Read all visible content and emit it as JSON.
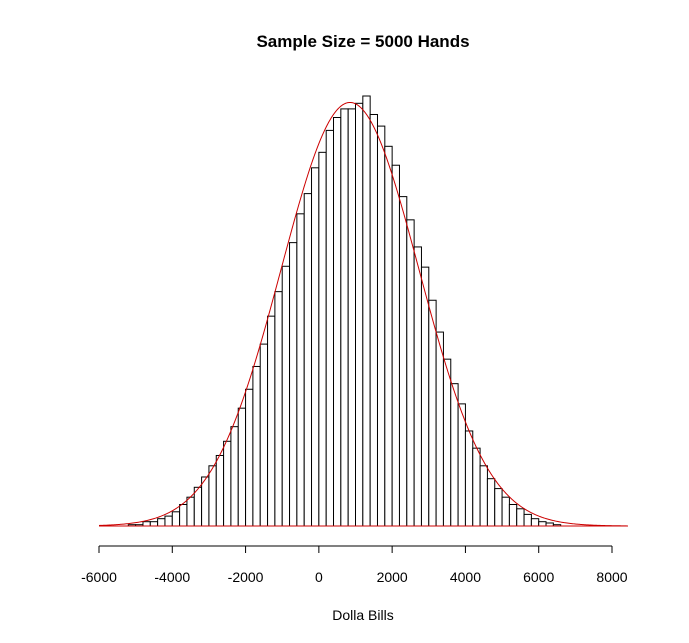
{
  "chart_data": {
    "type": "bar",
    "title": "Sample Size = 5000 Hands",
    "xlabel": "Dolla Bills",
    "ylabel": "",
    "xlim": [
      -6000,
      8000
    ],
    "xticks": [
      -6000,
      -4000,
      -2000,
      0,
      2000,
      4000,
      6000,
      8000
    ],
    "tick_labels": [
      "-6000",
      "-4000",
      "-2000",
      "0",
      "2000",
      "4000",
      "6000",
      "8000"
    ],
    "bin_width": 200,
    "bins_start": -5200,
    "values": [
      0.003,
      0.003,
      0.01,
      0.01,
      0.017,
      0.023,
      0.033,
      0.05,
      0.067,
      0.09,
      0.114,
      0.14,
      0.164,
      0.197,
      0.231,
      0.274,
      0.318,
      0.371,
      0.423,
      0.488,
      0.545,
      0.604,
      0.659,
      0.726,
      0.773,
      0.833,
      0.869,
      0.92,
      0.95,
      0.97,
      0.97,
      0.983,
      1.0,
      0.957,
      0.93,
      0.883,
      0.839,
      0.766,
      0.712,
      0.649,
      0.602,
      0.525,
      0.451,
      0.388,
      0.331,
      0.284,
      0.221,
      0.181,
      0.14,
      0.11,
      0.087,
      0.067,
      0.05,
      0.04,
      0.027,
      0.017,
      0.01,
      0.007,
      0.003
    ],
    "y_unit": "relative density (peak = 1)",
    "curve": {
      "type": "normal",
      "mean": 850,
      "sd": 1880,
      "color": "#cc0000"
    },
    "bar_fill": "#ffffff",
    "bar_stroke": "#000000",
    "grid": false,
    "y_axis_shown": false
  }
}
